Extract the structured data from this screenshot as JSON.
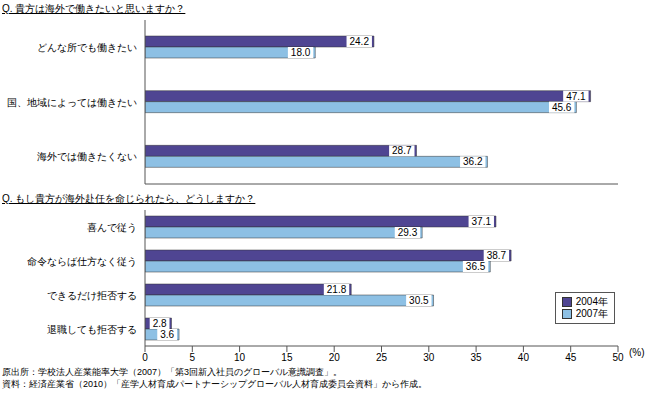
{
  "chart_data": [
    {
      "type": "bar",
      "orientation": "horizontal",
      "title": "Q. 貴方は海外で働きたいと思いますか？",
      "categories": [
        "どんな所でも働きたい",
        "国、地域によっては働きたい",
        "海外では働きたくない"
      ],
      "series": [
        {
          "name": "2004年",
          "color": "#4f4592",
          "values": [
            24.2,
            47.1,
            28.7
          ],
          "value_labels": [
            "24.2",
            "47.1",
            "28.7"
          ]
        },
        {
          "name": "2007年",
          "color": "#8dc0e4",
          "values": [
            18.0,
            45.6,
            36.2
          ],
          "value_labels": [
            "18.0",
            "45.6",
            "36.2"
          ]
        }
      ],
      "xlim": [
        0,
        50
      ],
      "grid": false,
      "data_labels": true,
      "tick_labels": "y"
    },
    {
      "type": "bar",
      "orientation": "horizontal",
      "title": "Q. もし貴方が海外赴任を命じられたら、どうしますか？",
      "categories": [
        "喜んで従う",
        "命令ならば仕方なく従う",
        "できるだけ拒否する",
        "退職しても拒否する"
      ],
      "series": [
        {
          "name": "2004年",
          "color": "#4f4592",
          "values": [
            37.1,
            38.7,
            21.8,
            2.8
          ],
          "value_labels": [
            "37.1",
            "38.7",
            "21.8",
            "2.8"
          ]
        },
        {
          "name": "2007年",
          "color": "#8dc0e4",
          "values": [
            29.3,
            36.5,
            30.5,
            3.6
          ],
          "value_labels": [
            "29.3",
            "36.5",
            "30.5",
            "3.6"
          ]
        }
      ],
      "xlabel": "(%)",
      "xlim": [
        0,
        50
      ],
      "xticks": [
        0,
        5,
        10,
        15,
        20,
        25,
        30,
        35,
        40,
        45,
        50
      ],
      "grid": false,
      "data_labels": true,
      "legend": "lower right",
      "annotations": [
        "原出所：学校法人産業能率大学（2007）「第3回新入社員のグローバル意識調査」。",
        "資料：経済産業省（2010）「産学人材育成パートナーシップグローバル人材育成委員会資料」から作成。"
      ]
    }
  ]
}
